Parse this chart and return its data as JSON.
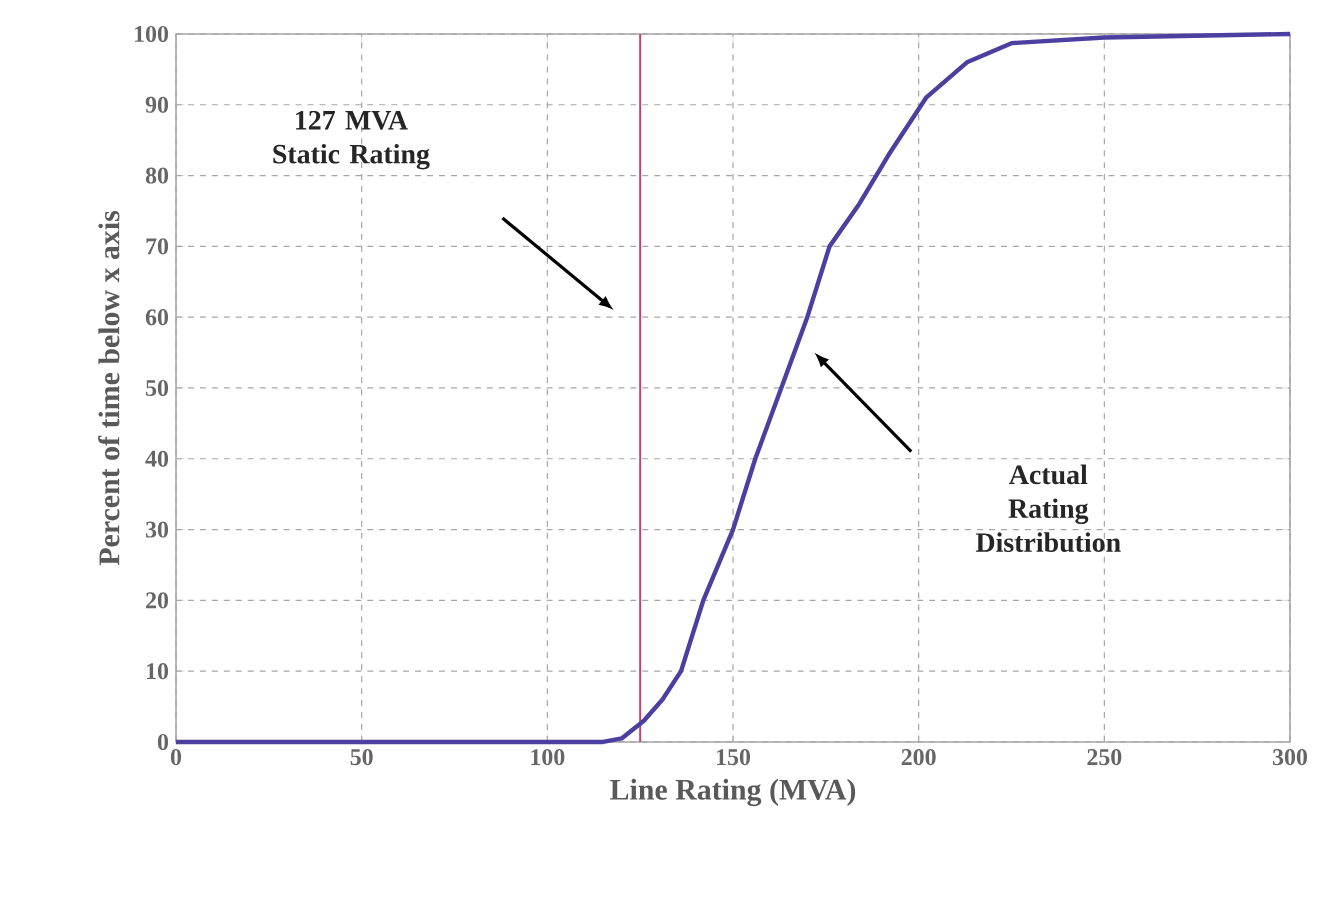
{
  "chart_data": {
    "type": "line",
    "xlabel": "Line Rating (MVA)",
    "ylabel": "Percent of time below x axis",
    "x": [
      0,
      115,
      120,
      126,
      131,
      136,
      142,
      150,
      156,
      163,
      170,
      176,
      184,
      192,
      202,
      213,
      225,
      250,
      300
    ],
    "series": [
      {
        "color": "#4b3fa0",
        "values": [
          0,
          0,
          0.5,
          3,
          6,
          10,
          20,
          30,
          40,
          50,
          60,
          70,
          76,
          83,
          91,
          96,
          98.7,
          99.5,
          100
        ]
      }
    ],
    "xlim": [
      0,
      300
    ],
    "xticks": [
      0,
      50,
      100,
      150,
      200,
      250,
      300
    ],
    "ylim": [
      0,
      100
    ],
    "yticks": [
      0,
      10,
      20,
      30,
      40,
      50,
      60,
      70,
      80,
      90,
      100
    ],
    "grid": true,
    "marker": "none",
    "line_style": "solid",
    "ref_lines": [
      {
        "axis": "x",
        "value": 125,
        "color": "#c0407a"
      }
    ],
    "annotations": [
      "127 MVA Static Rating",
      "Actual Rating Distribution"
    ]
  }
}
